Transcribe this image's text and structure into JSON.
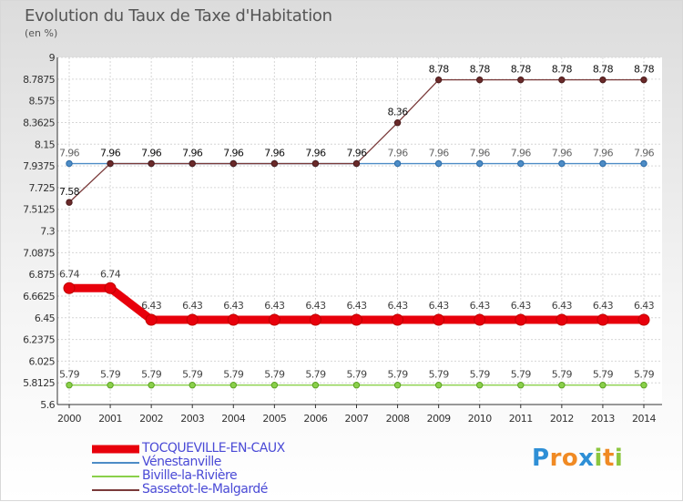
{
  "title": "Evolution du Taux de Taxe d'Habitation",
  "unit": "(en %)",
  "brand": {
    "letters": [
      "P",
      "r",
      "o",
      "x",
      "i",
      "t",
      "i"
    ],
    "colors": [
      "#2e8fd6",
      "#f08a24",
      "#f08a24",
      "#2e8fd6",
      "#8cc63f",
      "#f08a24",
      "#8cc63f"
    ]
  },
  "chart_data": {
    "type": "line",
    "title": "Evolution du Taux de Taxe d'Habitation",
    "ylabel": "(en %)",
    "xlabel": "",
    "x": [
      "2000",
      "2001",
      "2002",
      "2003",
      "2004",
      "2005",
      "2006",
      "2007",
      "2008",
      "2009",
      "2010",
      "2011",
      "2012",
      "2013",
      "2014"
    ],
    "ylim": [
      5.6,
      9
    ],
    "yticks": [
      "5.6",
      "5.8125",
      "6.025",
      "6.2375",
      "6.45",
      "6.6625",
      "6.875",
      "7.0875",
      "7.3",
      "7.5125",
      "7.725",
      "7.9375",
      "8.15",
      "8.3625",
      "8.575",
      "8.7875",
      "9"
    ],
    "grid": true,
    "legend_position": "bottom-left",
    "series": [
      {
        "name": "TOCQUEVILLE-EN-CAUX",
        "color": "#e8000b",
        "values": [
          6.74,
          6.74,
          6.43,
          6.43,
          6.43,
          6.43,
          6.43,
          6.43,
          6.43,
          6.43,
          6.43,
          6.43,
          6.43,
          6.43,
          6.43
        ],
        "labels": [
          "6.74",
          "6.74",
          "6.43",
          "6.43",
          "6.43",
          "6.43",
          "6.43",
          "6.43",
          "6.43",
          "6.43",
          "6.43",
          "6.43",
          "6.43",
          "6.43",
          "6.43"
        ]
      },
      {
        "name": "Vénestanville",
        "color": "#4d8cc6",
        "values": [
          7.96,
          7.96,
          7.96,
          7.96,
          7.96,
          7.96,
          7.96,
          7.96,
          7.96,
          7.96,
          7.96,
          7.96,
          7.96,
          7.96,
          7.96
        ],
        "labels": [
          "7.96",
          "7.96",
          "7.96",
          "7.96",
          "7.96",
          "7.96",
          "7.96",
          "7.96",
          "7.96",
          "7.96",
          "7.96",
          "7.96",
          "7.96",
          "7.96",
          "7.96"
        ]
      },
      {
        "name": "Biville-la-Rivière",
        "color": "#8ad04a",
        "values": [
          5.79,
          5.79,
          5.79,
          5.79,
          5.79,
          5.79,
          5.79,
          5.79,
          5.79,
          5.79,
          5.79,
          5.79,
          5.79,
          5.79,
          5.79
        ],
        "labels": [
          "5.79",
          "5.79",
          "5.79",
          "5.79",
          "5.79",
          "5.79",
          "5.79",
          "5.79",
          "5.79",
          "5.79",
          "5.79",
          "5.79",
          "5.79",
          "5.79",
          "5.79"
        ]
      },
      {
        "name": "Sassetot-le-Malgardé",
        "color": "#7a3a3a",
        "values": [
          7.58,
          7.96,
          7.96,
          7.96,
          7.96,
          7.96,
          7.96,
          7.96,
          8.36,
          8.78,
          8.78,
          8.78,
          8.78,
          8.78,
          8.78
        ],
        "labels": [
          "7.58",
          "7.96",
          "7.96",
          "7.96",
          "7.96",
          "7.96",
          "7.96",
          "7.96",
          "8.36",
          "8.78",
          "8.78",
          "8.78",
          "8.78",
          "8.78",
          "8.78"
        ]
      }
    ]
  }
}
